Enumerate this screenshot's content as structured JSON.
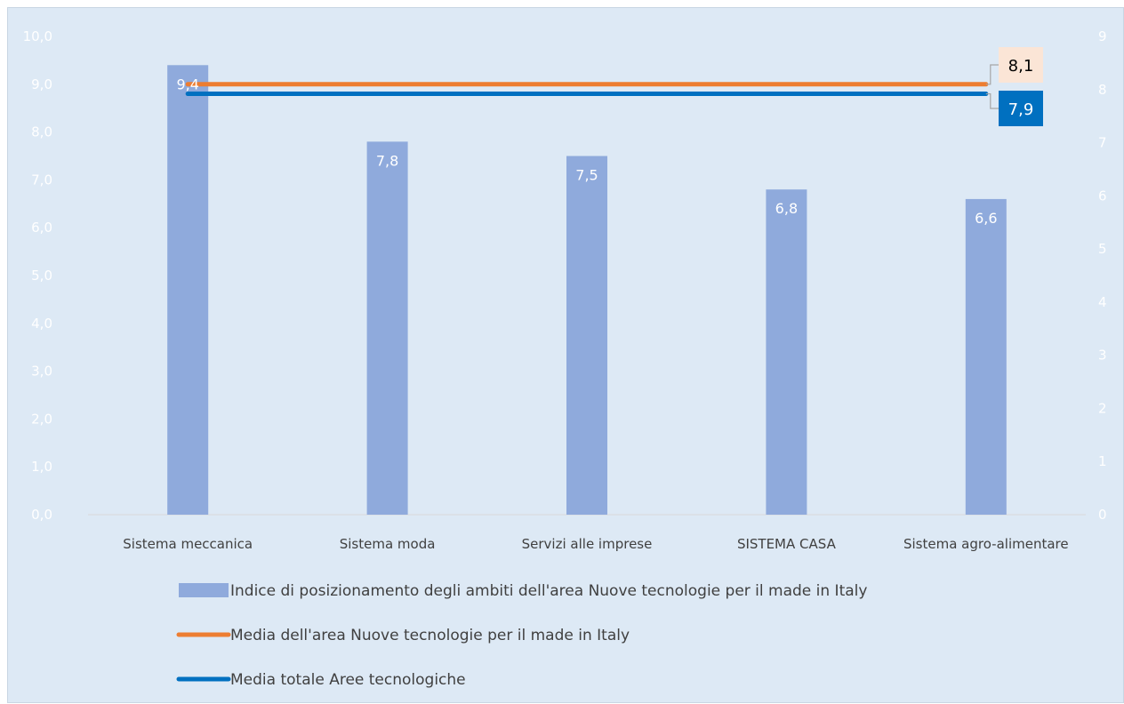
{
  "chart_data": {
    "type": "bar",
    "categories": [
      "Sistema meccanica",
      "Sistema moda",
      "Servizi alle imprese",
      "SISTEMA CASA",
      "Sistema agro-alimentare"
    ],
    "series": [
      {
        "name": "Indice di posizionamento degli ambiti dell'area Nuove tecnologie per il made in Italy",
        "kind": "bar",
        "values": [
          9.4,
          7.8,
          7.5,
          6.8,
          6.6
        ],
        "value_labels": [
          "9,4",
          "7,8",
          "7,5",
          "6,8",
          "6,6"
        ],
        "color": "#8faadc"
      },
      {
        "name": "Media dell'area Nuove tecnologie per il made in Italy",
        "kind": "line",
        "value": 8.1,
        "value_label": "8,1",
        "plotted_left_axis": 9.0,
        "color": "#ed7d31",
        "label_bg": "#fbe5d6",
        "label_fg": "#000000"
      },
      {
        "name": "Media totale Aree tecnologiche",
        "kind": "line",
        "value": 7.9,
        "value_label": "7,9",
        "plotted_left_axis": 8.8,
        "color": "#0070c0",
        "label_bg": "#0070c0",
        "label_fg": "#ffffff"
      }
    ],
    "y_left": {
      "ylim": [
        0,
        10
      ],
      "ticks": [
        "0,0",
        "1,0",
        "2,0",
        "3,0",
        "4,0",
        "5,0",
        "6,0",
        "7,0",
        "8,0",
        "9,0",
        "10,0"
      ]
    },
    "y_right": {
      "ylim": [
        0,
        9
      ],
      "ticks": [
        "0",
        "1",
        "2",
        "3",
        "4",
        "5",
        "6",
        "7",
        "8",
        "9"
      ]
    },
    "grid": false,
    "legend_position": "bottom",
    "background": "#dde9f5"
  }
}
